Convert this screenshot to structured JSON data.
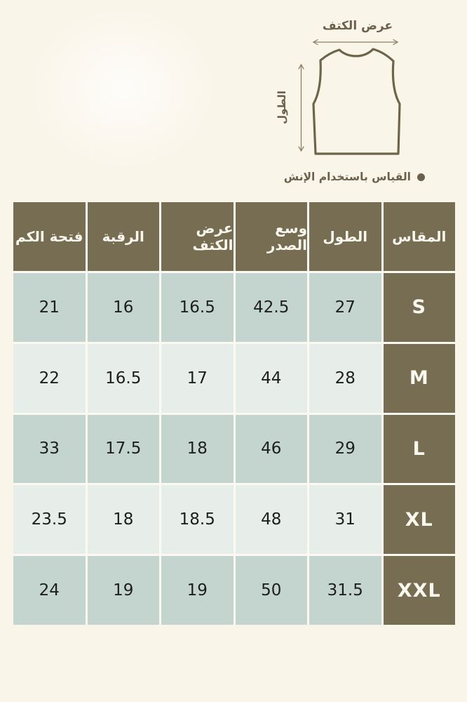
{
  "page": {
    "language": "ar",
    "direction": "rtl"
  },
  "colors": {
    "background": "#FAF5E9",
    "olive": "#776D53",
    "teal_row": "#C4D5D0",
    "light_row": "#E7EDE9",
    "grid_gap": "#FBFAF2",
    "number_text": "#1E1E1C",
    "diagram_ink": "#6D6549",
    "arrow_ink": "#8B8169",
    "label_ink": "#6B604B",
    "header_text": "#FAF7EE"
  },
  "diagram": {
    "top_label": "عرض الكتف",
    "side_label": "الطول",
    "note": "القياس باستخدام الإنش",
    "bullet_icon": "filled-circle"
  },
  "chart_data": {
    "type": "table",
    "title": "",
    "columns_rtl_order": [
      "المقاس",
      "الطول",
      "وسع الصدر",
      "عرض الكتف",
      "الرقبة",
      "فتحة الكم"
    ],
    "unit_note": "القياس باستخدام الإنش"
  },
  "table": {
    "direction": "rtl",
    "columns": [
      "المقاس",
      "الطول",
      "وسع الصدر",
      "عرض الكتف",
      "الرقبة",
      "فتحة الكم"
    ],
    "rows": [
      {
        "size": "S",
        "values": [
          "27",
          "42.5",
          "16.5",
          "16",
          "21"
        ]
      },
      {
        "size": "M",
        "values": [
          "28",
          "44",
          "17",
          "16.5",
          "22"
        ]
      },
      {
        "size": "L",
        "values": [
          "29",
          "46",
          "18",
          "17.5",
          "33"
        ]
      },
      {
        "size": "XL",
        "values": [
          "31",
          "48",
          "18.5",
          "18",
          "23.5"
        ]
      },
      {
        "size": "XXL",
        "values": [
          "31.5",
          "50",
          "19",
          "19",
          "24"
        ]
      }
    ]
  }
}
